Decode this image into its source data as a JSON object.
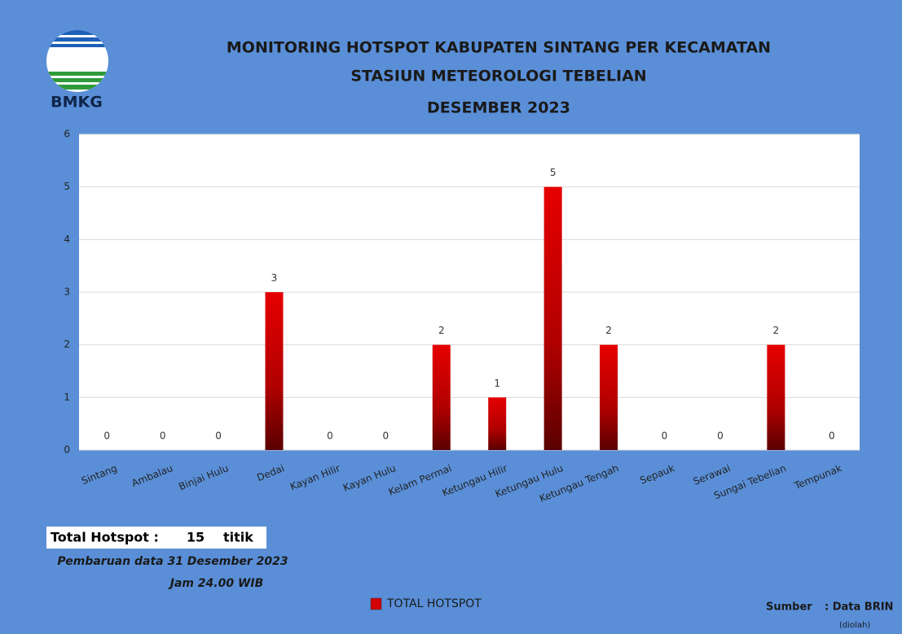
{
  "logo_text": "BMKG",
  "chart_data": {
    "type": "bar",
    "title": "MONITORING HOTSPOT KABUPATEN SINTANG PER KECAMATAN",
    "subtitle": "STASIUN METEOROLOGI TEBELIAN",
    "period": "DESEMBER 2023",
    "categories": [
      "Sintang",
      "Ambalau",
      "Binjai Hulu",
      "Dedai",
      "Kayan Hilir",
      "Kayan Hulu",
      "Kelam Permai",
      "Ketungau Hilir",
      "Ketungau Hulu",
      "Ketungau Tengah",
      "Sepauk",
      "Serawai",
      "Sungai Tebelian",
      "Tempunak"
    ],
    "series": [
      {
        "name": "TOTAL HOTSPOT",
        "color": "#d40000",
        "values": [
          0,
          0,
          0,
          3,
          0,
          0,
          2,
          1,
          5,
          2,
          0,
          0,
          2,
          0
        ]
      }
    ],
    "ylim": [
      0,
      6
    ],
    "yticks": [
      0,
      1,
      2,
      3,
      4,
      5,
      6
    ],
    "grid": true,
    "legend": "bottom"
  },
  "summary": {
    "label": "Total Hotspot :",
    "value": 15,
    "unit": "titik"
  },
  "update_note": [
    "Pembaruan data 31 Desember 2023",
    "Jam 24.00 WIB"
  ],
  "source": {
    "label": "Sumber",
    "value": ": Data BRIN",
    "note": "(diolah)"
  }
}
